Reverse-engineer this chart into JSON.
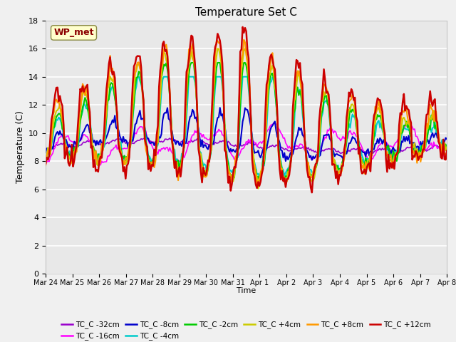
{
  "title": "Temperature Set C",
  "xlabel": "Time",
  "ylabel": "Temperature (C)",
  "ylim": [
    0,
    18
  ],
  "yticks": [
    0,
    2,
    4,
    6,
    8,
    10,
    12,
    14,
    16,
    18
  ],
  "wp_met_label": "WP_met",
  "series_colors": {
    "TC_C -32cm": "#9900cc",
    "TC_C -16cm": "#ff00ff",
    "TC_C -8cm": "#0000cc",
    "TC_C -4cm": "#00cccc",
    "TC_C -2cm": "#00cc00",
    "TC_C +4cm": "#cccc00",
    "TC_C +8cm": "#ff9900",
    "TC_C +12cm": "#cc0000"
  },
  "x_tick_labels": [
    "Mar 24",
    "Mar 25",
    "Mar 26",
    "Mar 27",
    "Mar 28",
    "Mar 29",
    "Mar 30",
    "Mar 31",
    "Apr 1",
    "Apr 2",
    "Apr 3",
    "Apr 4",
    "Apr 5",
    "Apr 6",
    "Apr 7",
    "Apr 8"
  ],
  "num_points": 337,
  "legend_order": [
    "TC_C -32cm",
    "TC_C -16cm",
    "TC_C -8cm",
    "TC_C -4cm",
    "TC_C -2cm",
    "TC_C +4cm",
    "TC_C +8cm",
    "TC_C +12cm"
  ]
}
